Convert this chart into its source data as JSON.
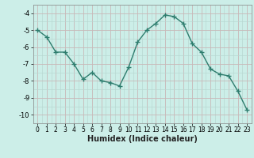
{
  "x": [
    0,
    1,
    2,
    3,
    4,
    5,
    6,
    7,
    8,
    9,
    10,
    11,
    12,
    13,
    14,
    15,
    16,
    17,
    18,
    19,
    20,
    21,
    22,
    23
  ],
  "y": [
    -5.0,
    -5.4,
    -6.3,
    -6.3,
    -7.0,
    -7.9,
    -7.5,
    -8.0,
    -8.1,
    -8.3,
    -7.2,
    -5.7,
    -5.0,
    -4.6,
    -4.1,
    -4.2,
    -4.6,
    -5.8,
    -6.3,
    -7.3,
    -7.6,
    -7.7,
    -8.6,
    -9.7
  ],
  "line_color": "#2e7d6e",
  "marker": "+",
  "marker_size": 4,
  "bg_color": "#cceee8",
  "grid_minor_color": "#b8d8d2",
  "grid_major_color": "#c8b8b8",
  "xlabel": "Humidex (Indice chaleur)",
  "xlim": [
    -0.5,
    23.5
  ],
  "ylim": [
    -10.5,
    -3.5
  ],
  "yticks": [
    -10,
    -9,
    -8,
    -7,
    -6,
    -5,
    -4
  ],
  "xticks": [
    0,
    1,
    2,
    3,
    4,
    5,
    6,
    7,
    8,
    9,
    10,
    11,
    12,
    13,
    14,
    15,
    16,
    17,
    18,
    19,
    20,
    21,
    22,
    23
  ]
}
